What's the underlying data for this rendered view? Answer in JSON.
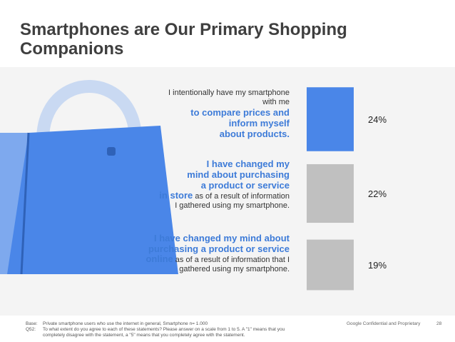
{
  "title": "Smartphones are Our Primary Shopping Companions",
  "statements": [
    {
      "l1": "I intentionally have my smartphone",
      "l2": "with me",
      "h1": "to compare prices and",
      "h2": "inform myself",
      "h3": "about products."
    },
    {
      "h1": "I have changed my",
      "h2": "mind about purchasing",
      "h3": "a product or service",
      "h4": "in store",
      "r1": " as of a result of information",
      "r2": "I gathered using my smartphone."
    },
    {
      "h1": "I have changed my mind about",
      "h2": "purchasing a product or service",
      "h3": "online",
      "r1": " as of a result of information that I",
      "r2": "gathered using my smartphone."
    }
  ],
  "chart_data": {
    "type": "bar",
    "orientation": "vertical",
    "categories": [
      "I intentionally have my smartphone with me to compare prices and inform myself about products.",
      "I have changed my mind about purchasing a product or service in store as of a result of information I gathered using my smartphone.",
      "I have changed my mind about purchasing a product or service online as of a result of information that I gathered using my smartphone."
    ],
    "values": [
      24,
      22,
      19
    ],
    "labels": [
      "24%",
      "22%",
      "19%"
    ],
    "colors": [
      "#4a86e8",
      "#c0c0c0",
      "#c0c0c0"
    ],
    "ylim": [
      0,
      30
    ]
  },
  "footnote": {
    "base_label": "Base:",
    "base_text": "Private smartphone users who use the internet in general, Smartphone n= 1.000",
    "q_label": "Q52:",
    "q_text_1": "To what extent do you agree to each of these statements? Please answer on a scale from 1 to 5. A \"1\" means that you",
    "q_text_2": "completely disagree with the statement, a \"5\" means that you completely agree with the statement."
  },
  "confidential": "Google Confidential and Proprietary",
  "page_number": "28",
  "colors": {
    "accent": "#3d7bd8",
    "bag": "#4a86e8",
    "bar_grey": "#c0c0c0"
  },
  "icons": {
    "bag": "shopping-bag-icon"
  }
}
